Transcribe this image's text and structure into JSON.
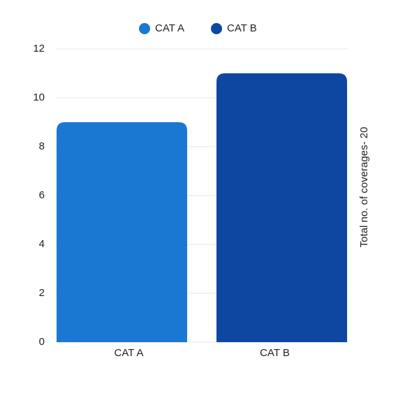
{
  "chart_data": {
    "type": "bar",
    "categories": [
      "CAT A",
      "CAT B"
    ],
    "series": [
      {
        "name": "CAT A",
        "color": "#1b78d2",
        "values": [
          9,
          null
        ]
      },
      {
        "name": "CAT B",
        "color": "#0d47a1",
        "values": [
          null,
          11
        ]
      }
    ],
    "y_label": "Total no. of coverages- 20",
    "ylim": [
      0,
      12
    ],
    "yticks": [
      0,
      2,
      4,
      6,
      8,
      10,
      12
    ],
    "grid": true,
    "legend": "top"
  }
}
